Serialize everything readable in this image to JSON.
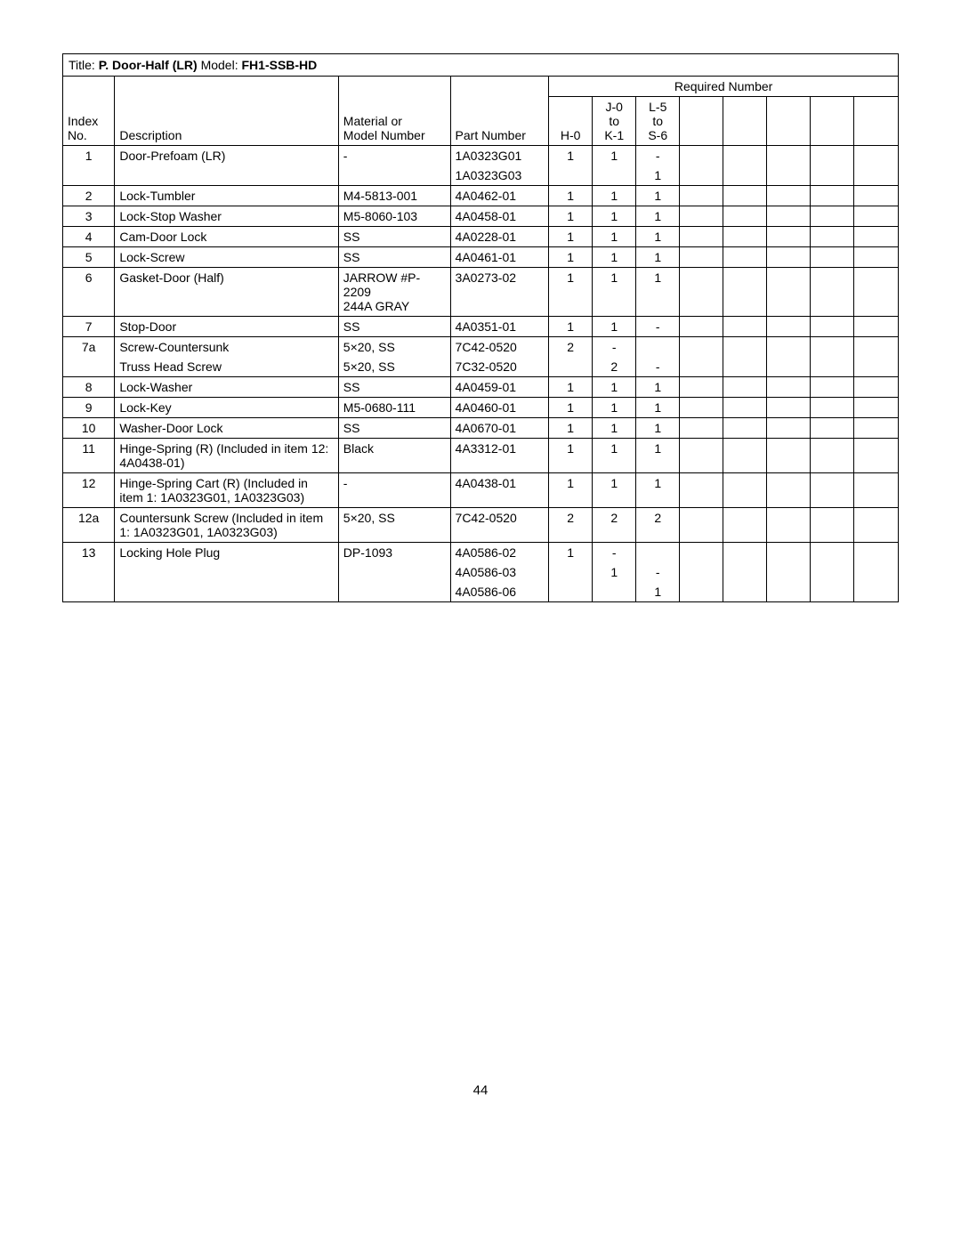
{
  "page_number": "44",
  "header": {
    "title_label": "Title: ",
    "title_value": "P. Door-Half (LR)",
    "model_label": "   Model: ",
    "model_value": "FH1-SSB-HD"
  },
  "columns": {
    "index_l1": "Index",
    "index_l2": "No.",
    "description": "Description",
    "material_l1": "Material or",
    "material_l2": "Model Number",
    "part": "Part Number",
    "required": "Required Number",
    "q1": "H-0",
    "q2_l1": "J-0",
    "q2_l2": "to",
    "q2_l3": "K-1",
    "q3_l1": "L-5",
    "q3_l2": "to",
    "q3_l3": "S-6"
  },
  "rows": [
    {
      "section_end": false,
      "idx": "1",
      "desc": "Door-Prefoam (LR)",
      "mat": "-",
      "part": "1A0323G01",
      "q": [
        "1",
        "1",
        "-",
        "",
        "",
        "",
        "",
        ""
      ]
    },
    {
      "section_end": true,
      "idx": "",
      "desc": "",
      "mat": "",
      "part": "1A0323G03",
      "q": [
        "",
        "",
        "1",
        "",
        "",
        "",
        "",
        ""
      ]
    },
    {
      "section_end": true,
      "idx": "2",
      "desc": "Lock-Tumbler",
      "mat": "M4-5813-001",
      "part": "4A0462-01",
      "q": [
        "1",
        "1",
        "1",
        "",
        "",
        "",
        "",
        ""
      ]
    },
    {
      "section_end": true,
      "idx": "3",
      "desc": "Lock-Stop Washer",
      "mat": "M5-8060-103",
      "part": "4A0458-01",
      "q": [
        "1",
        "1",
        "1",
        "",
        "",
        "",
        "",
        ""
      ]
    },
    {
      "section_end": true,
      "idx": "4",
      "desc": "Cam-Door Lock",
      "mat": "SS",
      "part": "4A0228-01",
      "q": [
        "1",
        "1",
        "1",
        "",
        "",
        "",
        "",
        ""
      ]
    },
    {
      "section_end": true,
      "idx": "5",
      "desc": "Lock-Screw",
      "mat": "SS",
      "part": "4A0461-01",
      "q": [
        "1",
        "1",
        "1",
        "",
        "",
        "",
        "",
        ""
      ]
    },
    {
      "section_end": true,
      "idx": "6",
      "desc": "Gasket-Door (Half)",
      "mat": "JARROW #P-2209\n244A  GRAY",
      "part": "3A0273-02",
      "q": [
        "1",
        "1",
        "1",
        "",
        "",
        "",
        "",
        ""
      ]
    },
    {
      "section_end": true,
      "idx": "7",
      "desc": "Stop-Door",
      "mat": "SS",
      "part": "4A0351-01",
      "q": [
        "1",
        "1",
        "-",
        "",
        "",
        "",
        "",
        ""
      ]
    },
    {
      "section_end": false,
      "idx": "7a",
      "desc": "Screw-Countersunk",
      "mat": "5×20, SS",
      "part": "7C42-0520",
      "q": [
        "2",
        "-",
        "",
        "",
        "",
        "",
        "",
        ""
      ]
    },
    {
      "section_end": true,
      "idx": "",
      "desc": "Truss Head Screw",
      "mat": "5×20, SS",
      "part": "7C32-0520",
      "q": [
        "",
        "2",
        "-",
        "",
        "",
        "",
        "",
        ""
      ]
    },
    {
      "section_end": true,
      "idx": "8",
      "desc": "Lock-Washer",
      "mat": "SS",
      "part": "4A0459-01",
      "q": [
        "1",
        "1",
        "1",
        "",
        "",
        "",
        "",
        ""
      ]
    },
    {
      "section_end": true,
      "idx": "9",
      "desc": "Lock-Key",
      "mat": "M5-0680-111",
      "part": "4A0460-01",
      "q": [
        "1",
        "1",
        "1",
        "",
        "",
        "",
        "",
        ""
      ]
    },
    {
      "section_end": true,
      "idx": "10",
      "desc": "Washer-Door Lock",
      "mat": "SS",
      "part": "4A0670-01",
      "q": [
        "1",
        "1",
        "1",
        "",
        "",
        "",
        "",
        ""
      ]
    },
    {
      "section_end": true,
      "idx": "11",
      "desc": "Hinge-Spring (R) (Included in item 12: 4A0438-01)",
      "mat": "Black",
      "part": "4A3312-01",
      "q": [
        "1",
        "1",
        "1",
        "",
        "",
        "",
        "",
        ""
      ]
    },
    {
      "section_end": true,
      "idx": "12",
      "desc": "Hinge-Spring Cart (R) (Included in item 1: 1A0323G01, 1A0323G03)",
      "mat": "-",
      "part": "4A0438-01",
      "q": [
        "1",
        "1",
        "1",
        "",
        "",
        "",
        "",
        ""
      ]
    },
    {
      "section_end": true,
      "idx": "12a",
      "desc": "Countersunk Screw (Included in item 1: 1A0323G01, 1A0323G03)",
      "mat": "5×20, SS",
      "part": "7C42-0520",
      "q": [
        "2",
        "2",
        "2",
        "",
        "",
        "",
        "",
        ""
      ]
    },
    {
      "section_end": false,
      "idx": "13",
      "desc": "Locking Hole Plug",
      "mat": "DP-1093",
      "part": "4A0586-02",
      "q": [
        "1",
        "-",
        "",
        "",
        "",
        "",
        "",
        ""
      ]
    },
    {
      "section_end": false,
      "idx": "",
      "desc": "",
      "mat": "",
      "part": "4A0586-03",
      "q": [
        "",
        "1",
        "-",
        "",
        "",
        "",
        "",
        ""
      ]
    },
    {
      "section_end": false,
      "idx": "",
      "desc": "",
      "mat": "",
      "part": "4A0586-06",
      "q": [
        "",
        "",
        "1",
        "",
        "",
        "",
        "",
        ""
      ]
    }
  ]
}
